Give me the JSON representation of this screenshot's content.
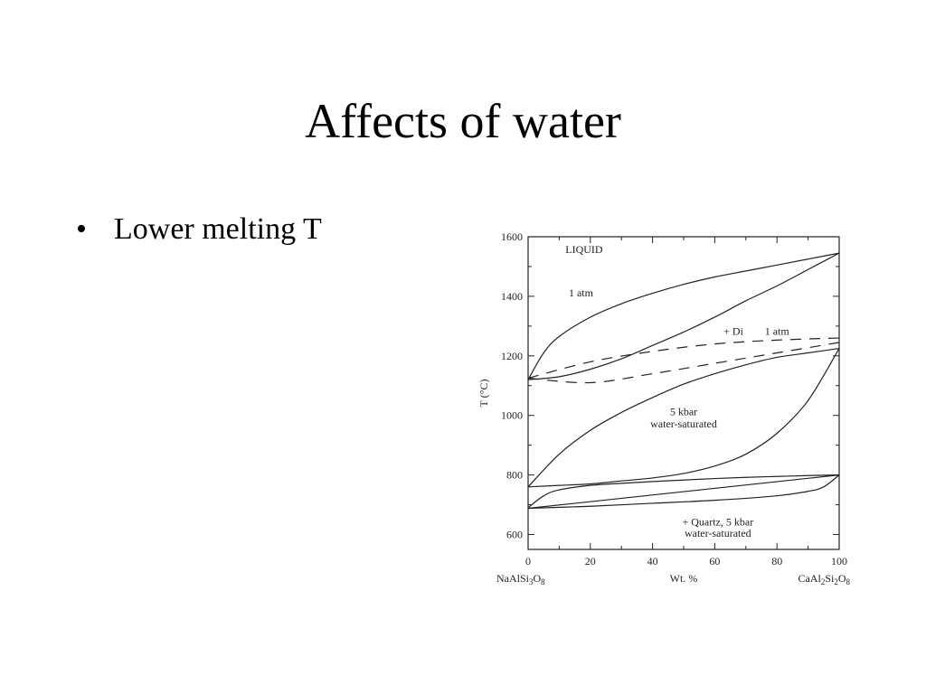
{
  "slide": {
    "title": "Affects of water",
    "bullets": [
      "Lower melting T"
    ]
  },
  "chart_data": {
    "type": "line",
    "xlabel": "Wt. %",
    "ylabel": "T (°C)",
    "xlim": [
      0,
      100
    ],
    "ylim": [
      550,
      1600
    ],
    "x_ticks": [
      0,
      20,
      40,
      60,
      80,
      100
    ],
    "y_ticks": [
      600,
      800,
      1000,
      1200,
      1400,
      1600
    ],
    "x_end_labels": {
      "left": {
        "base": "NaAlSi",
        "sub1": "3",
        "mid": "O",
        "sub2": "8"
      },
      "right": {
        "base": "CaAl",
        "sub1": "2",
        "mid": "Si",
        "sub1b": "2",
        "mid2": "O",
        "sub2": "8"
      }
    },
    "grid": false,
    "series": [
      {
        "id": "liquidus-1atm",
        "style": "solid",
        "x": [
          0,
          5,
          10,
          20,
          30,
          40,
          50,
          60,
          70,
          80,
          90,
          100
        ],
        "y": [
          1120,
          1210,
          1265,
          1330,
          1375,
          1410,
          1440,
          1465,
          1485,
          1505,
          1525,
          1545
        ]
      },
      {
        "id": "solidus-1atm",
        "style": "solid",
        "x": [
          0,
          10,
          20,
          30,
          40,
          50,
          60,
          70,
          80,
          90,
          100
        ],
        "y": [
          1120,
          1130,
          1155,
          1190,
          1235,
          1280,
          1330,
          1385,
          1435,
          1490,
          1545
        ]
      },
      {
        "id": "diopside-upper",
        "style": "dashed",
        "x": [
          0,
          20,
          40,
          60,
          80,
          100
        ],
        "y": [
          1125,
          1180,
          1215,
          1240,
          1253,
          1260
        ]
      },
      {
        "id": "diopside-lower",
        "style": "dashed",
        "x": [
          0,
          20,
          40,
          60,
          80,
          100
        ],
        "y": [
          1125,
          1110,
          1140,
          1175,
          1210,
          1245
        ]
      },
      {
        "id": "liquidus-5kbar",
        "style": "solid",
        "x": [
          0,
          10,
          20,
          30,
          40,
          50,
          60,
          70,
          80,
          90,
          100
        ],
        "y": [
          760,
          870,
          950,
          1010,
          1060,
          1105,
          1140,
          1170,
          1195,
          1210,
          1225
        ]
      },
      {
        "id": "solidus-5kbar",
        "style": "solid",
        "x": [
          0,
          10,
          20,
          30,
          40,
          50,
          60,
          70,
          80,
          90,
          100
        ],
        "y": [
          760,
          765,
          770,
          780,
          790,
          805,
          830,
          870,
          940,
          1050,
          1225
        ]
      },
      {
        "id": "qz-upper",
        "style": "solid",
        "x": [
          0,
          5,
          10,
          20,
          30,
          40,
          50,
          60,
          70,
          80,
          90,
          100
        ],
        "y": [
          690,
          730,
          750,
          765,
          772,
          778,
          783,
          788,
          792,
          795,
          798,
          800
        ]
      },
      {
        "id": "qz-lower",
        "style": "solid",
        "x": [
          0,
          20,
          40,
          60,
          80,
          90,
          95,
          100
        ],
        "y": [
          688,
          695,
          705,
          715,
          730,
          745,
          760,
          800
        ]
      },
      {
        "id": "qz-horizontal",
        "style": "solid",
        "x": [
          0,
          100
        ],
        "y": [
          688,
          800
        ]
      }
    ],
    "annotations": [
      {
        "text": "LIQUID",
        "x": 18,
        "y": 1545
      },
      {
        "text": "1 atm",
        "x": 17,
        "y": 1400
      },
      {
        "text": "+ Di",
        "x": 66,
        "y": 1270
      },
      {
        "text": "1 atm",
        "x": 80,
        "y": 1270
      },
      {
        "text": "5 kbar",
        "x": 50,
        "y": 1000
      },
      {
        "text": "water-saturated",
        "x": 50,
        "y": 960
      },
      {
        "text": "+ Quartz, 5 kbar",
        "x": 61,
        "y": 630
      },
      {
        "text": "water-saturated",
        "x": 61,
        "y": 592
      }
    ]
  }
}
